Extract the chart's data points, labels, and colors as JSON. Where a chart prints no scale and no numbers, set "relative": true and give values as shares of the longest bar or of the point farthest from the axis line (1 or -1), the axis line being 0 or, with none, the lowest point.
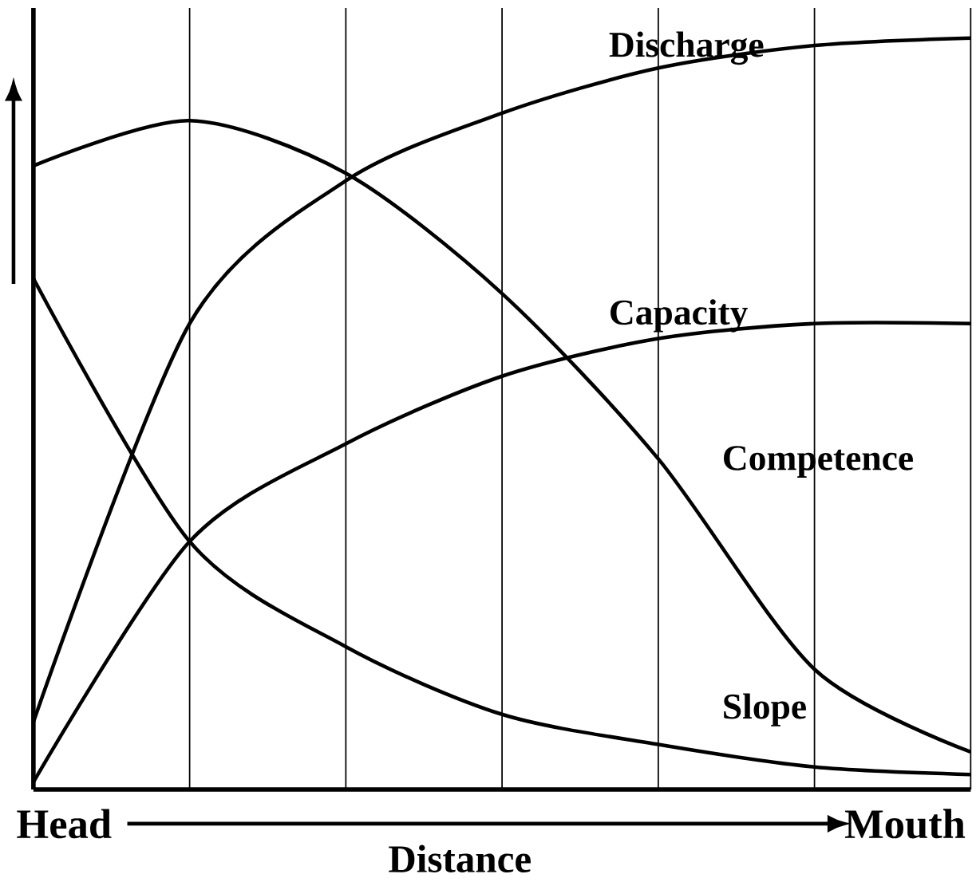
{
  "chart_data": {
    "type": "line",
    "relative": true,
    "xlabel": "Distance",
    "categories": [
      null,
      null,
      null,
      null,
      null,
      null,
      null
    ],
    "grid": "x",
    "marker": "none",
    "line_style": "solid",
    "annotations": [
      "Head",
      "Mouth"
    ],
    "series": [
      {
        "name": "Discharge",
        "color": "#000000",
        "values": [
          0.09,
          0.62,
          0.81,
          0.9,
          0.96,
          0.99,
          1
        ]
      },
      {
        "name": "Capacity",
        "color": "#000000",
        "values": [
          0.01,
          0.33,
          0.46,
          0.55,
          0.6,
          0.62,
          0.62
        ]
      },
      {
        "name": "Competence",
        "color": "#000000",
        "values": [
          0.83,
          0.89,
          0.82,
          0.66,
          0.44,
          0.16,
          0.05
        ]
      },
      {
        "name": "Slope",
        "color": "#000000",
        "values": [
          0.68,
          0.33,
          0.19,
          0.1,
          0.06,
          0.03,
          0.02
        ]
      }
    ]
  }
}
